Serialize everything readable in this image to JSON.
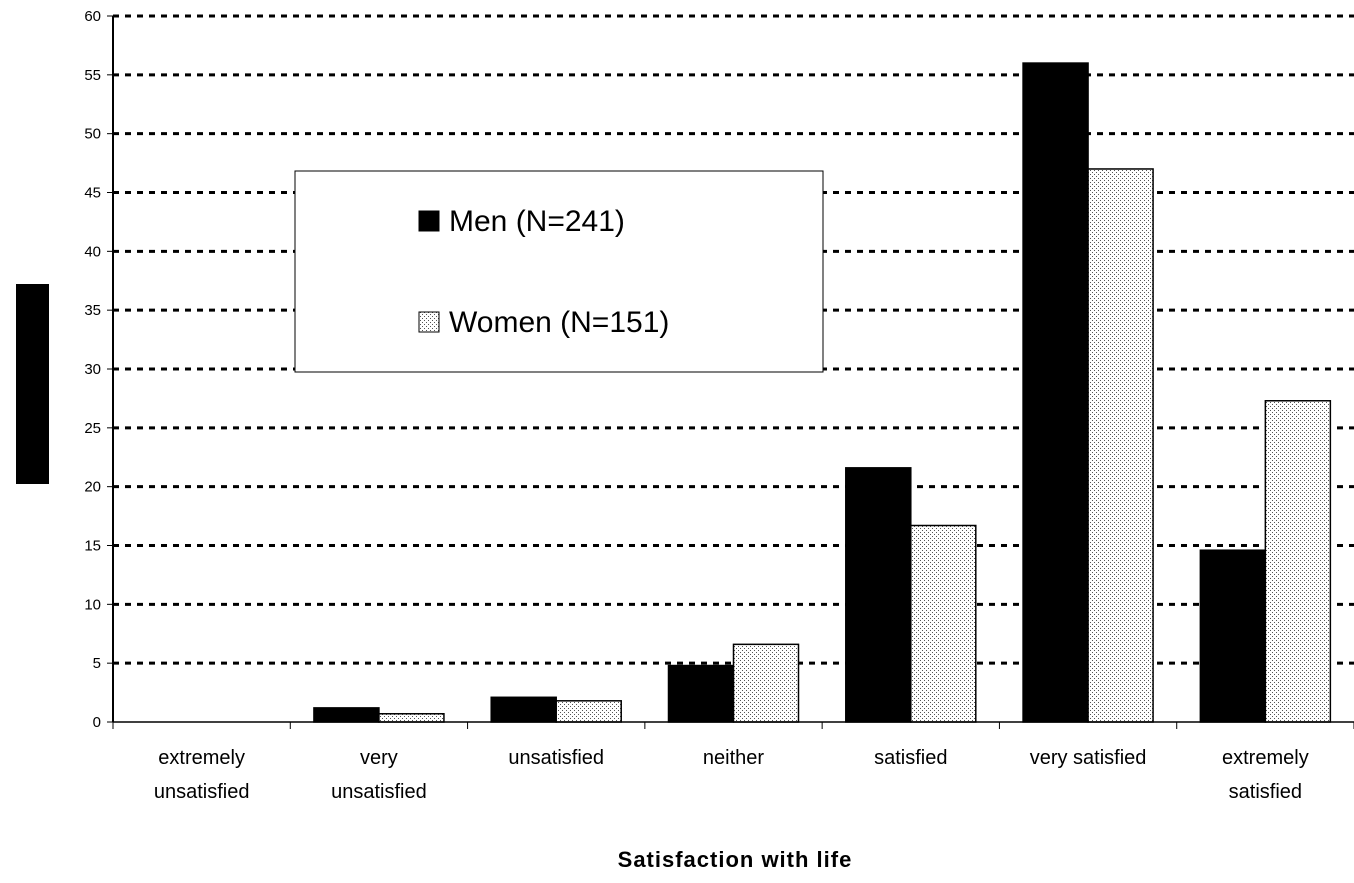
{
  "chart_data": {
    "type": "bar",
    "categories": [
      [
        "extremely",
        "unsatisfied"
      ],
      [
        "very",
        "unsatisfied"
      ],
      [
        "unsatisfied"
      ],
      [
        "neither"
      ],
      [
        "satisfied"
      ],
      [
        "very satisfied"
      ],
      [
        "extremely",
        "satisfied"
      ]
    ],
    "series": [
      {
        "name": "Men (N=241)",
        "values": [
          0,
          1.2,
          2.1,
          4.8,
          21.6,
          56.0,
          14.6
        ],
        "color": "#000000",
        "pattern": "solid"
      },
      {
        "name": "Women (N=151)",
        "values": [
          0,
          0.7,
          1.8,
          6.6,
          16.7,
          47.0,
          27.3
        ],
        "color": "#e6e6e6",
        "pattern": "dotted"
      }
    ],
    "xlabel": "Satisfaction with life",
    "ylabel": "",
    "ylim": [
      0,
      60
    ],
    "yticks": [
      0,
      5,
      10,
      15,
      20,
      25,
      30,
      35,
      40,
      45,
      50,
      55,
      60
    ],
    "grid": true,
    "legend_position": "upper-left-center"
  }
}
